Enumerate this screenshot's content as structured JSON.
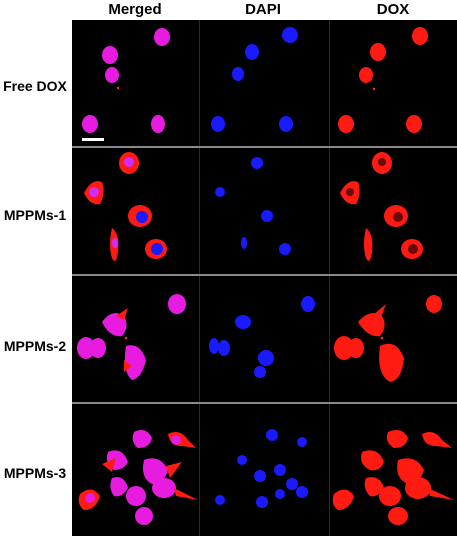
{
  "columns": [
    "Merged",
    "DAPI",
    "DOX"
  ],
  "rows": [
    "Free DOX",
    "MPPMs-1",
    "MPPMs-2",
    "MPPMs-3"
  ],
  "colors": {
    "merged_cell": "#e81ce0",
    "merged_nucleus": "#d12bff",
    "dapi_nucleus": "#1a1aff",
    "dox_cell": "#ff1b12",
    "dox_nucleus_dark": "#6a0808",
    "background": "#000000",
    "scale_bar": "#ffffff"
  }
}
